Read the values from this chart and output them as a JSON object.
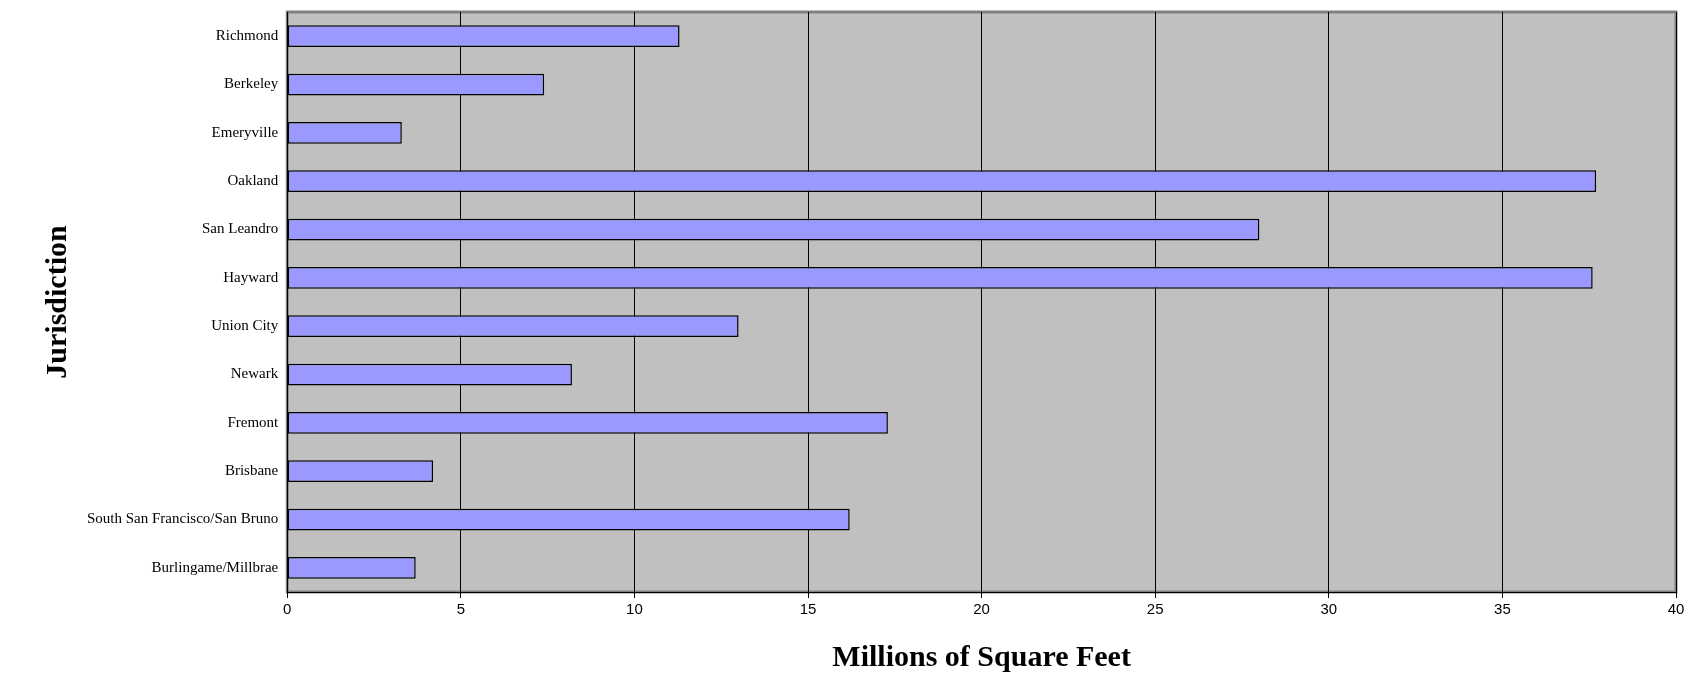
{
  "chart_data": {
    "type": "bar",
    "orientation": "horizontal",
    "xlabel": "Millions of Square Feet",
    "ylabel": "Jurisdiction",
    "categories": [
      "Richmond",
      "Berkeley",
      "Emeryville",
      "Oakland",
      "San Leandro",
      "Hayward",
      "Union City",
      "Newark",
      "Fremont",
      "Brisbane",
      "South San Francisco/San Bruno",
      "Burlingame/Millbrae"
    ],
    "values": [
      11.3,
      7.4,
      3.3,
      37.7,
      28.0,
      37.6,
      13.0,
      8.2,
      17.3,
      4.2,
      16.2,
      3.7
    ],
    "color": "#9999ff",
    "xlim": [
      0,
      40
    ],
    "xticks": [
      0,
      5,
      10,
      15,
      20,
      25,
      30,
      35,
      40
    ],
    "grid": "x",
    "legend": false
  }
}
